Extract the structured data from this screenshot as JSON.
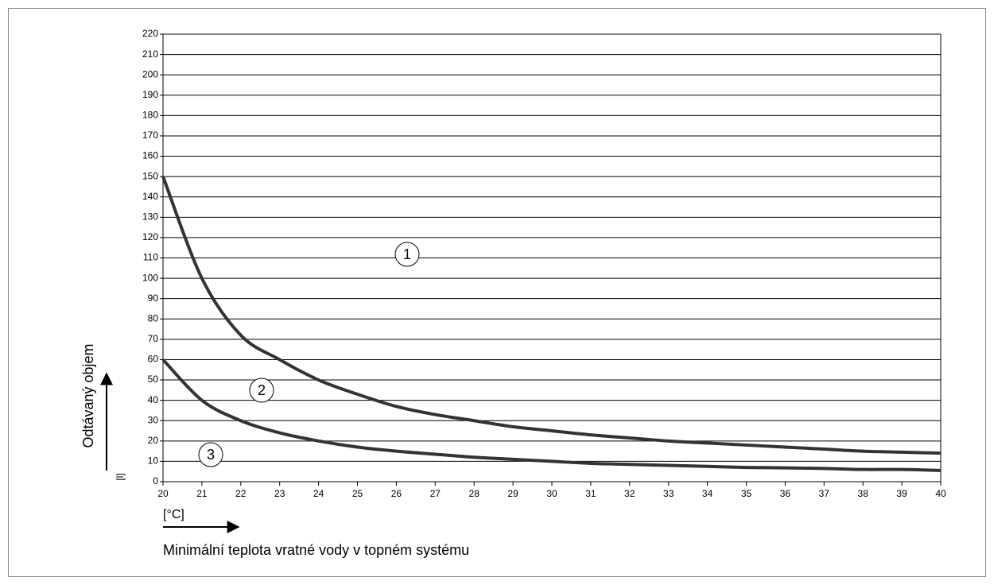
{
  "chart_data": {
    "type": "line",
    "ylabel": "Odtávaný objem",
    "yunit": "[l]",
    "xunit": "[°C]",
    "xlabel": "Minimální teplota vratné vody v topném systému",
    "x": [
      20,
      21,
      22,
      23,
      24,
      25,
      26,
      27,
      28,
      29,
      30,
      31,
      32,
      33,
      34,
      35,
      36,
      37,
      38,
      39,
      40
    ],
    "series": [
      {
        "color": "#333333",
        "values": [
          150,
          100,
          72,
          60,
          50,
          43,
          37,
          33,
          30,
          27,
          25,
          23,
          21.5,
          20,
          19,
          18,
          17,
          16,
          15,
          14.5,
          14
        ]
      },
      {
        "color": "#333333",
        "values": [
          60,
          40,
          30,
          24,
          20,
          17,
          15,
          13.5,
          12,
          11,
          10,
          9,
          8.5,
          8,
          7.5,
          7,
          6.8,
          6.5,
          6,
          6,
          5.5
        ]
      }
    ],
    "annotations": [
      "1",
      "2",
      "3"
    ],
    "xlim": [
      20,
      40
    ],
    "ylim": [
      0,
      220
    ],
    "xticks": [
      20,
      21,
      22,
      23,
      24,
      25,
      26,
      27,
      28,
      29,
      30,
      31,
      32,
      33,
      34,
      35,
      36,
      37,
      38,
      39,
      40
    ],
    "yticks": [
      0,
      10,
      20,
      30,
      40,
      50,
      60,
      70,
      80,
      90,
      100,
      110,
      120,
      130,
      140,
      150,
      160,
      170,
      180,
      190,
      200,
      210,
      220
    ],
    "grid": true
  }
}
